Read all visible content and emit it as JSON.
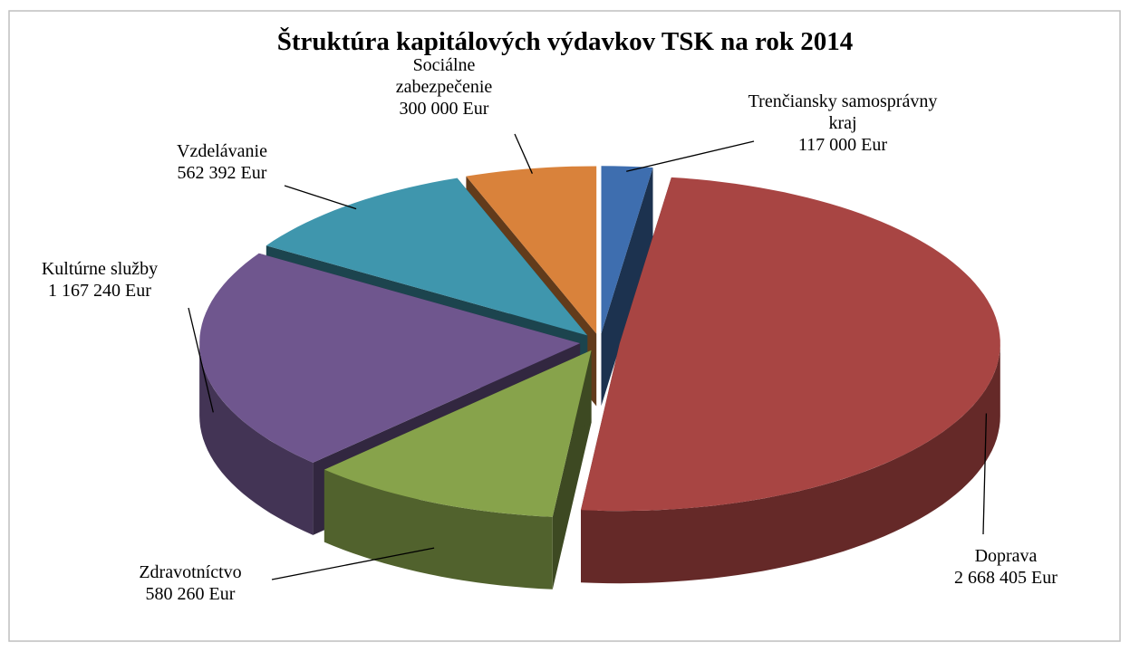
{
  "chart_data": {
    "type": "pie3d",
    "title": "Štruktúra kapitálových výdavkov TSK na rok 2014",
    "categories": [
      "Trenčiansky samosprávny kraj",
      "Doprava",
      "Zdravotníctvo",
      "Kultúrne služby",
      "Vzdelávanie",
      "Sociálne zabezpečenie"
    ],
    "values": [
      117000,
      2668405,
      580260,
      1167240,
      562392,
      300000
    ],
    "value_labels": [
      "117 000 Eur",
      "2 668 405 Eur",
      "580 260 Eur",
      "1 167 240 Eur",
      "562 392 Eur",
      "300 000 Eur"
    ],
    "colors": [
      "#3e6eaf",
      "#a84543",
      "#87a34b",
      "#6f568e",
      "#3f96ad",
      "#d9823b"
    ]
  }
}
